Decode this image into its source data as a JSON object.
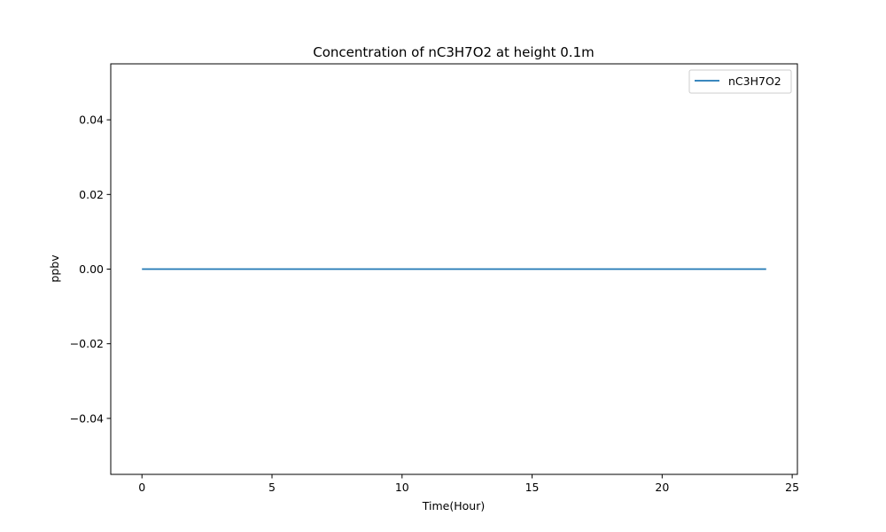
{
  "chart_data": {
    "type": "line",
    "title": "Concentration of nC3H7O2 at height 0.1m",
    "xlabel": "Time(Hour)",
    "ylabel": "ppbv",
    "xlim": [
      -1.2,
      25.2
    ],
    "ylim": [
      -0.055,
      0.055
    ],
    "xticks": [
      0,
      5,
      10,
      15,
      20,
      25
    ],
    "xtick_labels": [
      "0",
      "5",
      "10",
      "15",
      "20",
      "25"
    ],
    "yticks": [
      -0.04,
      -0.02,
      0.0,
      0.02,
      0.04
    ],
    "ytick_labels": [
      "−0.04",
      "−0.02",
      "0.00",
      "0.02",
      "0.04"
    ],
    "grid": false,
    "legend_position": "top-right",
    "series": [
      {
        "name": "nC3H7O2",
        "color": "#1f77b4",
        "x": [
          0,
          24
        ],
        "y": [
          0.0,
          0.0
        ]
      }
    ]
  }
}
